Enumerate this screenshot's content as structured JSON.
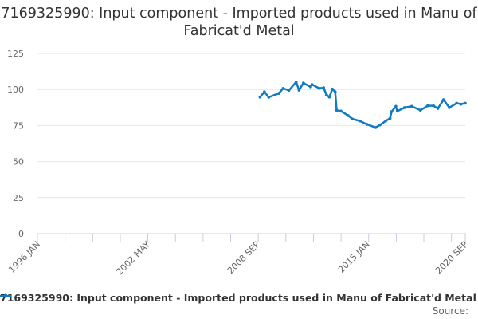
{
  "chart_data": {
    "type": "line",
    "title": "7169325990: Input component - Imported products used in Manu of Fabricat'd Metal",
    "xlabel": "",
    "ylabel": "",
    "ylim": [
      0,
      125
    ],
    "yticks": [
      "0",
      "25",
      "50",
      "75",
      "100",
      "125"
    ],
    "xrange": [
      "1996-01",
      "2020-09"
    ],
    "xticks": [
      "1996 JAN",
      "2002 MAY",
      "2008 SEP",
      "2015 JAN",
      "2020 SEP"
    ],
    "grid": true,
    "legend_position": "bottom",
    "series": [
      {
        "name": "7169325990: Input component - Imported products used in Manu of Fabricat'd Metal",
        "color": "#0f7bc0",
        "x": [
          "2008-11",
          "2009-02",
          "2009-05",
          "2009-12",
          "2010-03",
          "2010-07",
          "2010-12",
          "2011-02",
          "2011-05",
          "2011-10",
          "2011-11",
          "2012-04",
          "2012-07",
          "2012-09",
          "2012-11",
          "2013-01",
          "2013-03",
          "2013-04",
          "2013-07",
          "2013-12",
          "2014-03",
          "2014-08",
          "2015-01",
          "2015-07",
          "2015-10",
          "2016-02",
          "2016-05",
          "2016-06",
          "2016-09",
          "2016-10",
          "2017-03",
          "2017-08",
          "2018-02",
          "2018-07",
          "2018-11",
          "2019-02",
          "2019-06",
          "2019-10",
          "2020-03",
          "2020-06",
          "2020-09"
        ],
        "values": [
          94.7,
          98.4,
          94.6,
          97.3,
          100.8,
          99.4,
          105.2,
          99.5,
          104.5,
          101.8,
          103.4,
          100.8,
          101.2,
          96.2,
          94.7,
          100.3,
          98.4,
          85.6,
          85.0,
          81.9,
          79.5,
          78.2,
          75.8,
          73.6,
          75.4,
          78.2,
          80.0,
          84.6,
          88.3,
          85.0,
          87.4,
          88.3,
          85.6,
          88.7,
          88.7,
          86.8,
          92.9,
          87.4,
          90.5,
          89.8,
          90.5
        ]
      }
    ]
  },
  "source_label": "Source:"
}
